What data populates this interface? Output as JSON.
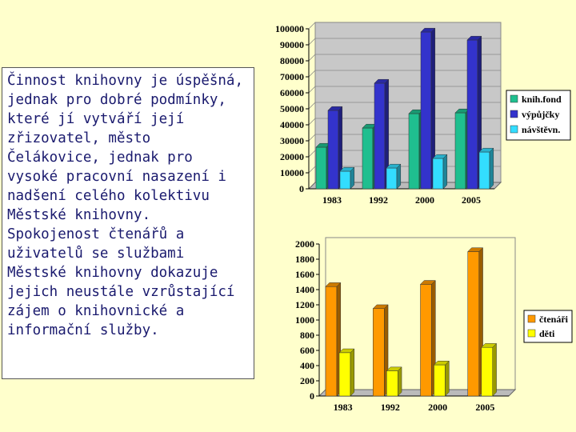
{
  "text_panel": {
    "body": "Činnost knihovny je úspěšná, jednak pro dobré podmínky, které jí vytváří její zřizovatel, město Čelákovice, jednak pro vysoké pracovní nasazení i nadšení celého kolektivu Městské knihovny. Spokojenost čtenářů a uživatelů se službami Městské knihovny dokazuje jejich neustále vzrůstající zájem o knihovnické a informační služby."
  },
  "chart_data": [
    {
      "type": "bar",
      "categories": [
        "1983",
        "1992",
        "2000",
        "2005"
      ],
      "series": [
        {
          "name": "knih.fond",
          "values": [
            26000,
            38000,
            47000,
            47500
          ],
          "color": "#1fbf8f"
        },
        {
          "name": "výpůjčky",
          "values": [
            49000,
            66000,
            98000,
            93000
          ],
          "color": "#3333cc"
        },
        {
          "name": "návštěvn.",
          "values": [
            11000,
            13000,
            19000,
            23000
          ],
          "color": "#33ddff"
        }
      ],
      "ylim": [
        0,
        100000
      ],
      "yticks": [
        "0",
        "10000",
        "20000",
        "30000",
        "40000",
        "50000",
        "60000",
        "70000",
        "80000",
        "90000",
        "100000"
      ],
      "grid": true,
      "legend": "right",
      "style": "3d"
    },
    {
      "type": "bar",
      "categories": [
        "1983",
        "1992",
        "2000",
        "2005"
      ],
      "series": [
        {
          "name": "čtenáři",
          "values": [
            1440,
            1150,
            1470,
            1900
          ],
          "color": "#ff9900"
        },
        {
          "name": "děti",
          "values": [
            570,
            330,
            410,
            640
          ],
          "color": "#ffff00"
        }
      ],
      "ylim": [
        0,
        2000
      ],
      "yticks": [
        "0",
        "200",
        "400",
        "600",
        "800",
        "1000",
        "1200",
        "1400",
        "1600",
        "1800",
        "2000"
      ],
      "grid": false,
      "legend": "right",
      "style": "3d"
    }
  ]
}
